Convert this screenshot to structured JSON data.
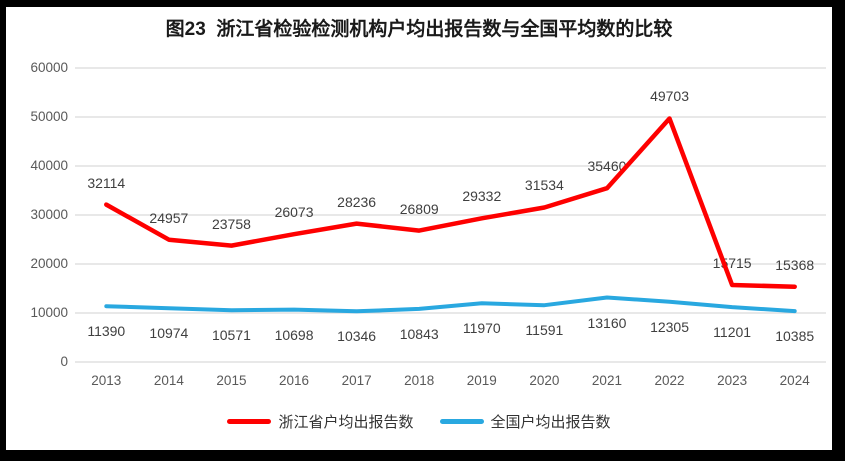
{
  "frame": {
    "border_color": "#000000",
    "background_color": "#ffffff"
  },
  "chart_data": {
    "type": "line",
    "title": "图23  浙江省检验检测机构户均出报告数与全国平均数的比较",
    "categories": [
      "2013",
      "2014",
      "2015",
      "2016",
      "2017",
      "2018",
      "2019",
      "2020",
      "2021",
      "2022",
      "2023",
      "2024"
    ],
    "series": [
      {
        "name": "浙江省户均出报告数",
        "color": "#fe0000",
        "line_width": 4.5,
        "label_position": "above",
        "values": [
          32114,
          24957,
          23758,
          26073,
          28236,
          26809,
          29332,
          31534,
          35460,
          49703,
          15715,
          15368
        ]
      },
      {
        "name": "全国户均出报告数",
        "color": "#29a8e0",
        "line_width": 4,
        "label_position": "below",
        "values": [
          11390,
          10974,
          10571,
          10698,
          10346,
          10843,
          11970,
          11591,
          13160,
          12305,
          11201,
          10385
        ]
      }
    ],
    "ylim": [
      0,
      60000
    ],
    "ytick_interval": 10000,
    "yticks": [
      "0",
      "10000",
      "20000",
      "30000",
      "40000",
      "50000",
      "60000"
    ],
    "grid": true,
    "grid_color": "#d9d9d9",
    "axis_label_color": "#595959",
    "data_label_color": "#3f3f3f",
    "legend_position": "bottom",
    "data_labels": true
  }
}
